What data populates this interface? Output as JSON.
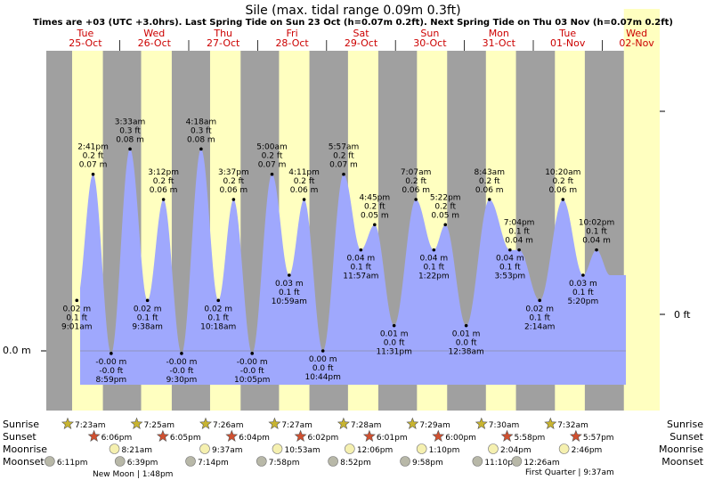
{
  "chart_data": {
    "type": "area",
    "title": "Sile (max. tidal range 0.09m 0.3ft)",
    "subtitle": "Times are +03 (UTC +3.0hrs). Last Spring Tide on Sun 23 Oct (h=0.07m 0.2ft). Next Spring Tide on Thu 03 Nov (h=0.07m 0.2ft)",
    "ylabel_left": "0.0 m",
    "ylabel_right": "0 ft",
    "x_unit": "hours since Tue 25-Oct 00:00",
    "xlim": [
      -1.6,
      202
    ],
    "ylim_m": [
      -0.021,
      0.098
    ],
    "colors": {
      "night": "#a0a0a0",
      "day": "#ffffc0",
      "water": "#9fa8fd",
      "sun_icon": "#c8b430",
      "sunset_icon": "#d05030",
      "moon": "#f5f0b0",
      "moonset": "#b8b8a8"
    },
    "days": [
      {
        "dow": "Tue",
        "date": "25-Oct"
      },
      {
        "dow": "Wed",
        "date": "26-Oct"
      },
      {
        "dow": "Thu",
        "date": "27-Oct"
      },
      {
        "dow": "Fri",
        "date": "28-Oct"
      },
      {
        "dow": "Sat",
        "date": "29-Oct"
      },
      {
        "dow": "Sun",
        "date": "30-Oct"
      },
      {
        "dow": "Mon",
        "date": "31-Oct"
      },
      {
        "dow": "Tue",
        "date": "01-Nov"
      },
      {
        "dow": "Wed",
        "date": "02-Nov"
      }
    ],
    "tides": [
      {
        "type": "high",
        "t": 14.68,
        "time": "2:41 pm",
        "m": "0.07 m",
        "ft": "0.2 ft",
        "h": 0.07
      },
      {
        "type": "low",
        "t": 20.98,
        "time": "8:59 pm",
        "m": "-0.00 m",
        "ft": "-0.0 ft",
        "h": -0.001
      },
      {
        "type": "low",
        "t": 9.02,
        "time": "9:01 am",
        "m": "0.02 m",
        "ft": "0.1 ft",
        "h": 0.02
      },
      {
        "type": "high",
        "t": 27.55,
        "time": "3:33 am",
        "m": "0.08 m",
        "ft": "0.3 ft",
        "h": 0.08
      },
      {
        "type": "low",
        "t": 33.63,
        "time": "9:38 am",
        "m": "0.02 m",
        "ft": "0.1 ft",
        "h": 0.02
      },
      {
        "type": "high",
        "t": 39.2,
        "time": "3:12 pm",
        "m": "0.06 m",
        "ft": "0.2 ft",
        "h": 0.06
      },
      {
        "type": "low",
        "t": 45.5,
        "time": "9:30 pm",
        "m": "-0.00 m",
        "ft": "-0.0 ft",
        "h": -0.001
      },
      {
        "type": "high",
        "t": 52.3,
        "time": "4:18 am",
        "m": "0.08 m",
        "ft": "0.3 ft",
        "h": 0.08
      },
      {
        "type": "low",
        "t": 58.3,
        "time": "10:18 am",
        "m": "0.02 m",
        "ft": "0.1 ft",
        "h": 0.02
      },
      {
        "type": "high",
        "t": 63.62,
        "time": "3:37 pm",
        "m": "0.06 m",
        "ft": "0.2 ft",
        "h": 0.06
      },
      {
        "type": "low",
        "t": 70.08,
        "time": "10:05 pm",
        "m": "-0.00 m",
        "ft": "-0.0 ft",
        "h": -0.001
      },
      {
        "type": "high",
        "t": 77.0,
        "time": "5:00 am",
        "m": "0.07 m",
        "ft": "0.2 ft",
        "h": 0.07
      },
      {
        "type": "low",
        "t": 82.98,
        "time": "10:59 am",
        "m": "0.03 m",
        "ft": "0.1 ft",
        "h": 0.03
      },
      {
        "type": "high",
        "t": 88.18,
        "time": "4:11 pm",
        "m": "0.06 m",
        "ft": "0.2 ft",
        "h": 0.06
      },
      {
        "type": "low",
        "t": 94.73,
        "time": "10:44 pm",
        "m": "0.00 m",
        "ft": "0.0 ft",
        "h": 0.0
      },
      {
        "type": "high",
        "t": 101.95,
        "time": "5:57 am",
        "m": "0.07 m",
        "ft": "0.2 ft",
        "h": 0.07
      },
      {
        "type": "low",
        "t": 107.95,
        "time": "11:57 am",
        "m": "0.04 m",
        "ft": "0.1 ft",
        "h": 0.04
      },
      {
        "type": "high",
        "t": 112.75,
        "time": "4:45 pm",
        "m": "0.05 m",
        "ft": "0.2 ft",
        "h": 0.05
      },
      {
        "type": "low",
        "t": 119.52,
        "time": "11:31 pm",
        "m": "0.01 m",
        "ft": "0.0 ft",
        "h": 0.01
      },
      {
        "type": "high",
        "t": 127.12,
        "time": "7:07 am",
        "m": "0.06 m",
        "ft": "0.2 ft",
        "h": 0.06
      },
      {
        "type": "low",
        "t": 133.37,
        "time": "1:22 pm",
        "m": "0.04 m",
        "ft": "0.1 ft",
        "h": 0.04
      },
      {
        "type": "high",
        "t": 137.37,
        "time": "5:22 pm",
        "m": "0.05 m",
        "ft": "0.2 ft",
        "h": 0.05
      },
      {
        "type": "low",
        "t": 144.63,
        "time": "12:38 am",
        "m": "0.01 m",
        "ft": "0.0 ft",
        "h": 0.01
      },
      {
        "type": "high",
        "t": 152.72,
        "time": "8:43 am",
        "m": "0.06 m",
        "ft": "0.2 ft",
        "h": 0.06
      },
      {
        "type": "low",
        "t": 159.88,
        "time": "3:53 pm",
        "m": "0.04 m",
        "ft": "0.1 ft",
        "h": 0.04
      },
      {
        "type": "high",
        "t": 163.07,
        "time": "7:04 pm",
        "m": "0.04 m",
        "ft": "0.1 ft",
        "h": 0.04
      },
      {
        "type": "low",
        "t": 170.23,
        "time": "2:14 am",
        "m": "0.02 m",
        "ft": "0.1 ft",
        "h": 0.02
      },
      {
        "type": "high",
        "t": 178.33,
        "time": "10:20 am",
        "m": "0.06 m",
        "ft": "0.2 ft",
        "h": 0.06
      },
      {
        "type": "low",
        "t": 185.33,
        "time": "5:20 pm",
        "m": "0.03 m",
        "ft": "0.1 ft",
        "h": 0.03
      },
      {
        "type": "high",
        "t": 190.03,
        "time": "10:02 pm",
        "m": "0.04 m",
        "ft": "0.1 ft",
        "h": 0.04
      }
    ],
    "sunrise": [
      "7:23am",
      "7:25am",
      "7:26am",
      "7:27am",
      "7:28am",
      "7:29am",
      "7:30am",
      "7:32am"
    ],
    "sunset": [
      "6:06pm",
      "6:05pm",
      "6:04pm",
      "6:02pm",
      "6:01pm",
      "6:00pm",
      "5:58pm",
      "5:57pm"
    ],
    "moonrise": [
      "8:21am",
      "9:37am",
      "10:53am",
      "12:06pm",
      "1:10pm",
      "2:04pm",
      "2:46pm"
    ],
    "moonset": [
      "6:11pm",
      "6:39pm",
      "7:14pm",
      "7:58pm",
      "8:52pm",
      "9:58pm",
      "11:10pm",
      "12:26am"
    ],
    "moon_phases": [
      {
        "label": "New Moon",
        "time": "1:48pm"
      },
      {
        "label": "First Quarter",
        "time": "9:37am"
      }
    ],
    "row_labels": [
      "Sunrise",
      "Sunset",
      "Moonrise",
      "Moonset"
    ]
  }
}
